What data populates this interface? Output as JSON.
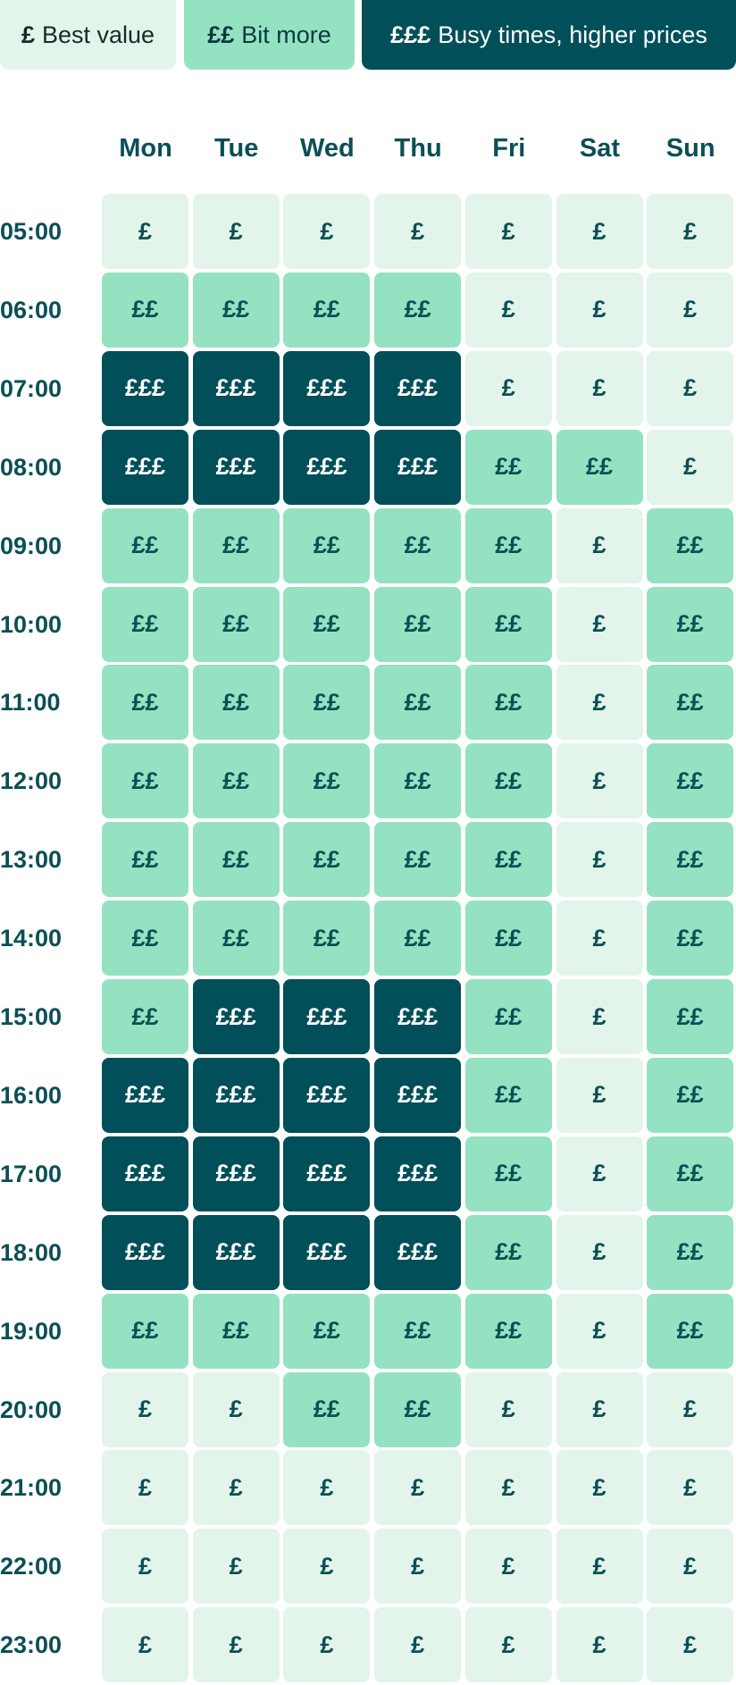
{
  "legend": [
    {
      "symbol": "£",
      "label": "Best value"
    },
    {
      "symbol": "££",
      "label": "Bit more"
    },
    {
      "symbol": "£££",
      "label": "Busy times, higher prices"
    }
  ],
  "colors": {
    "best_value": "#e3f4ea",
    "bit_more": "#94e2c1",
    "busy": "#004f59",
    "text": "#0b4f55"
  },
  "price_symbols": {
    "1": "£",
    "2": "££",
    "3": "£££"
  },
  "days": [
    "Mon",
    "Tue",
    "Wed",
    "Thu",
    "Fri",
    "Sat",
    "Sun"
  ],
  "times": [
    "05:00",
    "06:00",
    "07:00",
    "08:00",
    "09:00",
    "10:00",
    "11:00",
    "12:00",
    "13:00",
    "14:00",
    "15:00",
    "16:00",
    "17:00",
    "18:00",
    "19:00",
    "20:00",
    "21:00",
    "22:00",
    "23:00"
  ],
  "price_levels": [
    [
      1,
      1,
      1,
      1,
      1,
      1,
      1
    ],
    [
      2,
      2,
      2,
      2,
      1,
      1,
      1
    ],
    [
      3,
      3,
      3,
      3,
      1,
      1,
      1
    ],
    [
      3,
      3,
      3,
      3,
      2,
      2,
      1
    ],
    [
      2,
      2,
      2,
      2,
      2,
      1,
      2
    ],
    [
      2,
      2,
      2,
      2,
      2,
      1,
      2
    ],
    [
      2,
      2,
      2,
      2,
      2,
      1,
      2
    ],
    [
      2,
      2,
      2,
      2,
      2,
      1,
      2
    ],
    [
      2,
      2,
      2,
      2,
      2,
      1,
      2
    ],
    [
      2,
      2,
      2,
      2,
      2,
      1,
      2
    ],
    [
      2,
      3,
      3,
      3,
      2,
      1,
      2
    ],
    [
      3,
      3,
      3,
      3,
      2,
      1,
      2
    ],
    [
      3,
      3,
      3,
      3,
      2,
      1,
      2
    ],
    [
      3,
      3,
      3,
      3,
      2,
      1,
      2
    ],
    [
      2,
      2,
      2,
      2,
      2,
      1,
      2
    ],
    [
      1,
      1,
      2,
      2,
      1,
      1,
      1
    ],
    [
      1,
      1,
      1,
      1,
      1,
      1,
      1
    ],
    [
      1,
      1,
      1,
      1,
      1,
      1,
      1
    ],
    [
      1,
      1,
      1,
      1,
      1,
      1,
      1
    ]
  ]
}
